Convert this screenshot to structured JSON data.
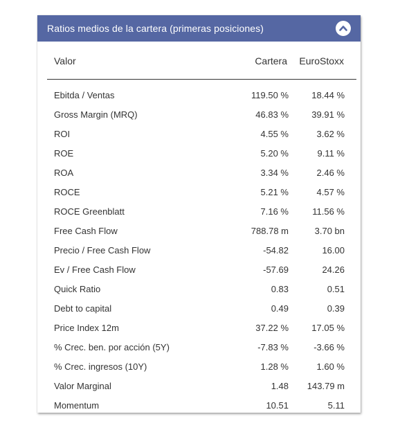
{
  "panel": {
    "title": "Ratios medios de la cartera (primeras posiciones)",
    "toggle_icon": "chevron-up-icon",
    "header_color": "#5567a3"
  },
  "columns": {
    "label": "Valor",
    "cartera": "Cartera",
    "eurostoxx": "EuroStoxx"
  },
  "rows": [
    {
      "label": "Ebitda / Ventas",
      "cartera": "119.50 %",
      "eurostoxx": "18.44 %"
    },
    {
      "label": "Gross Margin (MRQ)",
      "cartera": "46.83 %",
      "eurostoxx": "39.91 %"
    },
    {
      "label": "ROI",
      "cartera": "4.55 %",
      "eurostoxx": "3.62 %"
    },
    {
      "label": "ROE",
      "cartera": "5.20 %",
      "eurostoxx": "9.11 %"
    },
    {
      "label": "ROA",
      "cartera": "3.34 %",
      "eurostoxx": "2.46 %"
    },
    {
      "label": "ROCE",
      "cartera": "5.21 %",
      "eurostoxx": "4.57 %"
    },
    {
      "label": "ROCE Greenblatt",
      "cartera": "7.16 %",
      "eurostoxx": "11.56 %"
    },
    {
      "label": "Free Cash Flow",
      "cartera": "788.78 m",
      "eurostoxx": "3.70 bn"
    },
    {
      "label": "Precio / Free Cash Flow",
      "cartera": "-54.82",
      "eurostoxx": "16.00"
    },
    {
      "label": "Ev / Free Cash Flow",
      "cartera": "-57.69",
      "eurostoxx": "24.26"
    },
    {
      "label": "Quick Ratio",
      "cartera": "0.83",
      "eurostoxx": "0.51"
    },
    {
      "label": "Debt to capital",
      "cartera": "0.49",
      "eurostoxx": "0.39"
    },
    {
      "label": "Price Index 12m",
      "cartera": "37.22 %",
      "eurostoxx": "17.05 %"
    },
    {
      "label": "% Crec. ben. por acción (5Y)",
      "cartera": "-7.83 %",
      "eurostoxx": "-3.66 %"
    },
    {
      "label": "% Crec. ingresos (10Y)",
      "cartera": "1.28 %",
      "eurostoxx": "1.60 %"
    },
    {
      "label": "Valor Marginal",
      "cartera": "1.48",
      "eurostoxx": "143.79 m"
    },
    {
      "label": "Momentum",
      "cartera": "10.51",
      "eurostoxx": "5.11"
    }
  ]
}
